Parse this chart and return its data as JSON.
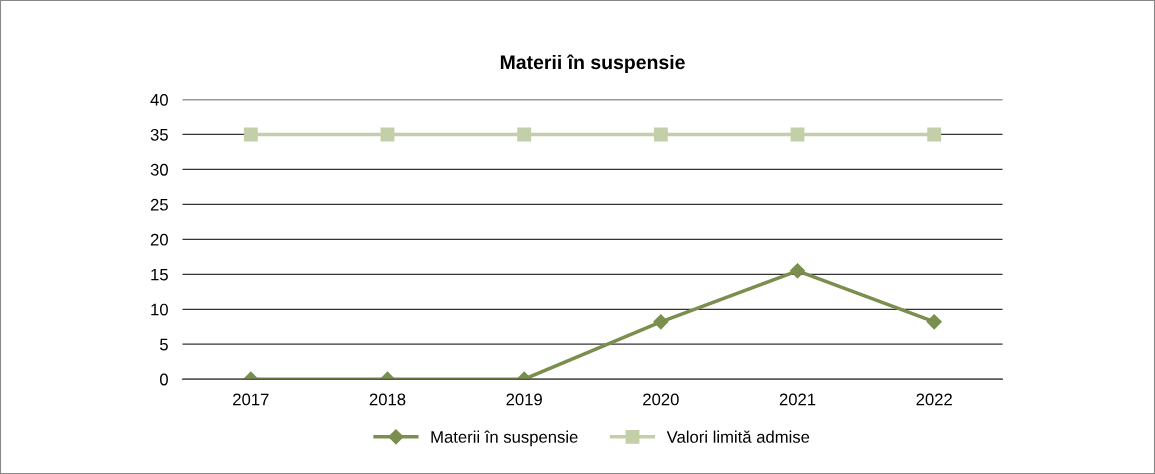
{
  "chart_data": {
    "type": "line",
    "title": "Materii în suspensie",
    "categories": [
      "2017",
      "2018",
      "2019",
      "2020",
      "2021",
      "2022"
    ],
    "series": [
      {
        "name": "Materii în suspensie",
        "color": "#7a8f4e",
        "marker": "diamond",
        "values": [
          0,
          0,
          0,
          8.2,
          15.5,
          8.2
        ]
      },
      {
        "name": "Valori limită admise",
        "color": "#c3cfa8",
        "marker": "square",
        "values": [
          35,
          35,
          35,
          35,
          35,
          35
        ]
      }
    ],
    "ylim": [
      0,
      40
    ],
    "yticks": [
      0,
      5,
      10,
      15,
      20,
      25,
      30,
      35,
      40
    ],
    "grid": "y",
    "legend": "bottom",
    "line_style": "solid"
  }
}
